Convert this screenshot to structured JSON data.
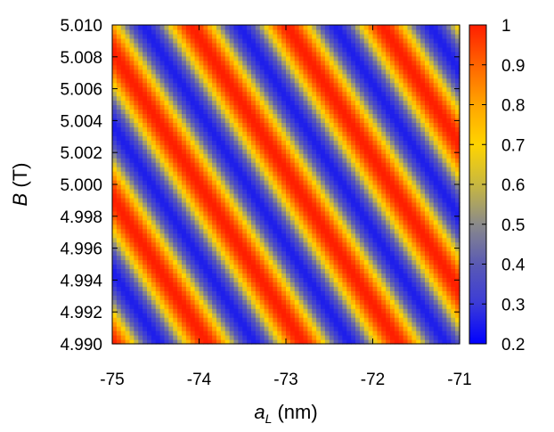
{
  "chart_data": {
    "type": "heatmap",
    "title": "",
    "xlabel": {
      "var": "a",
      "sub": "L",
      "unit": " (nm)"
    },
    "ylabel": {
      "var": "B",
      "unit": " (T)"
    },
    "xlim": [
      -75,
      -71
    ],
    "ylim": [
      4.99,
      5.01
    ],
    "x_ticks": [
      "-75",
      "-74",
      "-73",
      "-72",
      "-71"
    ],
    "y_ticks": [
      "4.990",
      "4.992",
      "4.994",
      "4.996",
      "4.998",
      "5.000",
      "5.002",
      "5.004",
      "5.006",
      "5.008",
      "5.010"
    ],
    "colorbar": {
      "range": [
        0.2,
        1.0
      ],
      "ticks": [
        "0.2",
        "0.3",
        "0.4",
        "0.5",
        "0.6",
        "0.7",
        "0.8",
        "0.9",
        "1"
      ],
      "palette": [
        "#0000ff",
        "#3b3bd8",
        "#5a5ab4",
        "#8a8a8a",
        "#c8b840",
        "#ffd400",
        "#ffa500",
        "#ff6400",
        "#ff1e00"
      ]
    },
    "z_model": {
      "description": "periodic diagonal stripes",
      "min": 0.25,
      "max": 1.0,
      "period_x_nm": 1.1,
      "period_y_T": 0.0092
    }
  }
}
